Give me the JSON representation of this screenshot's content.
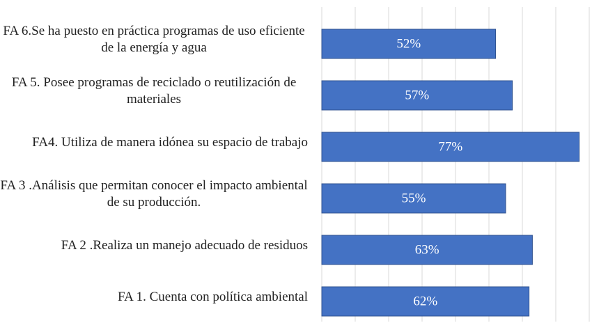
{
  "chart_data": {
    "type": "bar",
    "orientation": "horizontal",
    "categories": [
      "FA 6.Se ha puesto en práctica programas de uso eficiente de la energía y agua",
      "FA 5. Posee programas de reciclado o reutilización de materiales",
      "FA4. Utiliza de manera idónea su espacio de trabajo",
      "FA 3 .Análisis que permitan conocer el impacto ambiental de su producción.",
      "FA 2 .Realiza un manejo adecuado de residuos",
      "FA 1. Cuenta con política ambiental"
    ],
    "values": [
      52,
      57,
      77,
      55,
      63,
      62
    ],
    "value_labels": [
      "52%",
      "57%",
      "77%",
      "55%",
      "63%",
      "62%"
    ],
    "color": "#4472c4",
    "xlim": [
      0,
      80
    ],
    "xticks": [
      0,
      10,
      20,
      30,
      40,
      50,
      60,
      70,
      80
    ],
    "grid": true
  }
}
